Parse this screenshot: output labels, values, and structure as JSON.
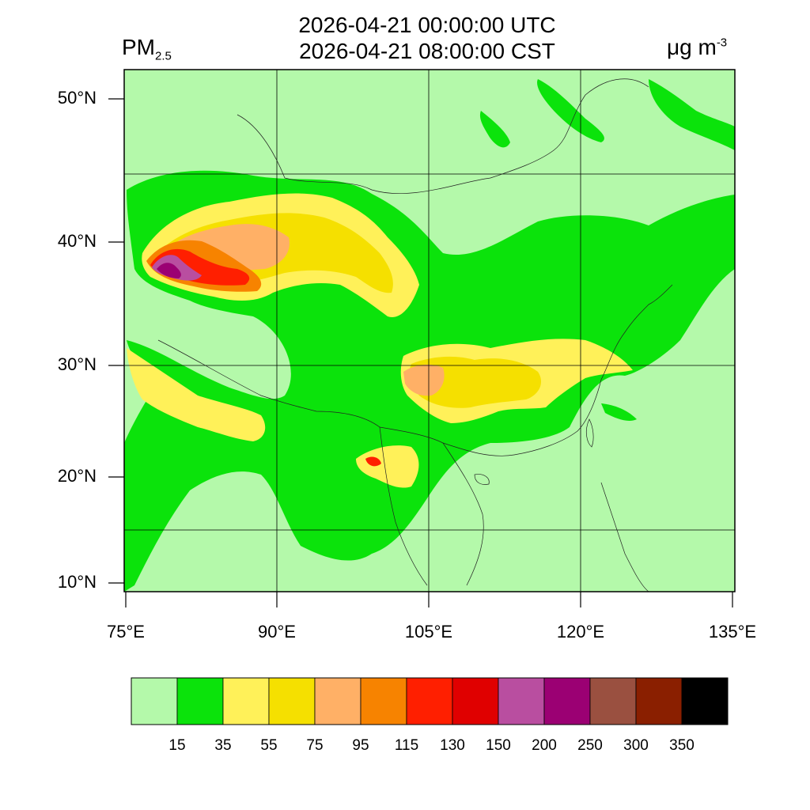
{
  "header": {
    "utc_time": "2026-04-21 00:00:00 UTC",
    "local_time": "2026-04-21 08:00:00 CST",
    "variable_base": "PM",
    "variable_sub": "2.5",
    "units_base": "μg m",
    "units_sup": "-3"
  },
  "map": {
    "lat_ticks": [
      "50°N",
      "40°N",
      "30°N",
      "20°N",
      "10°N"
    ],
    "lon_ticks": [
      "75°E",
      "90°E",
      "105°E",
      "120°E",
      "135°E"
    ],
    "background_color": "#b4f9aa"
  },
  "colorbar": {
    "colors": [
      "#b4f9aa",
      "#0be30b",
      "#fff159",
      "#f5e000",
      "#ffb066",
      "#f78300",
      "#ff1f00",
      "#e00000",
      "#b94ea0",
      "#9b0073",
      "#9a5040",
      "#8a1f00",
      "#000000"
    ],
    "labels": [
      "15",
      "35",
      "55",
      "75",
      "95",
      "115",
      "130",
      "150",
      "200",
      "250",
      "300",
      "350"
    ]
  }
}
